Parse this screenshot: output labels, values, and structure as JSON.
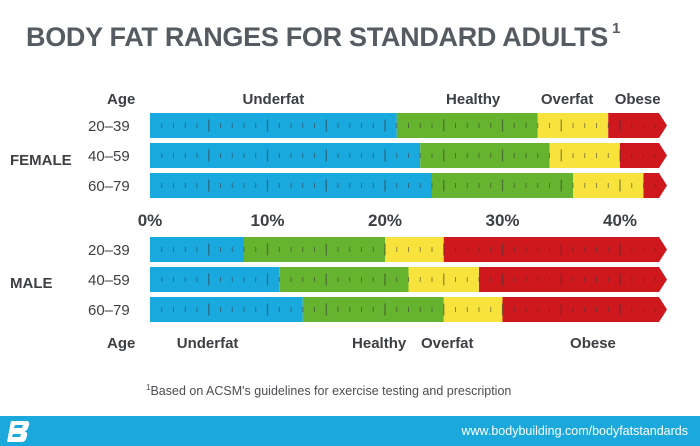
{
  "title": "BODY FAT RANGES FOR STANDARD ADULTS",
  "title_superscript": "1",
  "footnote_marker": "1",
  "footnote_text": "Based on ACSM's guidelines for exercise testing and prescription",
  "url": "www.bodybuilding.com/bodyfatstandards",
  "logo_icon": "bodybuilding-b-logo-icon",
  "chart_data": {
    "type": "bar",
    "orientation": "horizontal-stacked",
    "xlim": [
      0,
      44
    ],
    "x_ticks": [
      {
        "value": 0,
        "label": "0%"
      },
      {
        "value": 10,
        "label": "10%"
      },
      {
        "value": 20,
        "label": "20%"
      },
      {
        "value": 30,
        "label": "30%"
      },
      {
        "value": 40,
        "label": "40%"
      }
    ],
    "categories_colors": {
      "Underfat": "#19a9df",
      "Healthy": "#65b32e",
      "Overfat": "#f7e33c",
      "Obese": "#cf171e"
    },
    "groups": [
      {
        "name": "FEMALE",
        "header": {
          "age": "Age",
          "labels": [
            {
              "text": "Underfat",
              "value": 10.5
            },
            {
              "text": "Healthy",
              "value": 27.5
            },
            {
              "text": "Overfat",
              "value": 35.5
            },
            {
              "text": "Obese",
              "value": 41.5
            }
          ]
        },
        "rows": [
          {
            "age": "20–39",
            "thresholds": [
              21,
              33,
              39
            ]
          },
          {
            "age": "40–59",
            "thresholds": [
              23,
              34,
              40
            ]
          },
          {
            "age": "60–79",
            "thresholds": [
              24,
              36,
              42
            ]
          }
        ]
      },
      {
        "name": "MALE",
        "header": {
          "age": "Age",
          "labels": [
            {
              "text": "Underfat",
              "value": 4.9
            },
            {
              "text": "Healthy",
              "value": 19.5
            },
            {
              "text": "Overfat",
              "value": 25.3
            },
            {
              "text": "Obese",
              "value": 37.7
            }
          ]
        },
        "rows": [
          {
            "age": "20–39",
            "thresholds": [
              8,
              20,
              25
            ]
          },
          {
            "age": "40–59",
            "thresholds": [
              11,
              22,
              28
            ]
          },
          {
            "age": "60–79",
            "thresholds": [
              13,
              25,
              30
            ]
          }
        ]
      }
    ]
  }
}
